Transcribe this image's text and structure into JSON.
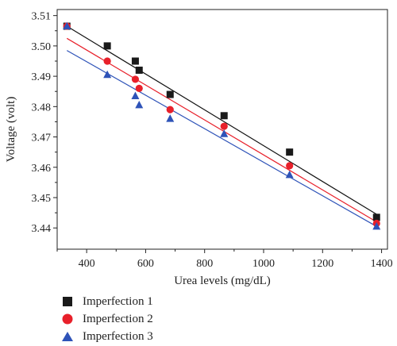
{
  "chart_data": {
    "type": "scatter",
    "xlabel": "Urea levels (mg/dL)",
    "ylabel": "Voltage (volt)",
    "xlim": [
      300,
      1420
    ],
    "ylim": [
      3.433,
      3.512
    ],
    "xticks": [
      400,
      600,
      800,
      1000,
      1200,
      1400
    ],
    "yticks": [
      3.44,
      3.45,
      3.46,
      3.47,
      3.48,
      3.49,
      3.5,
      3.51
    ],
    "xtick_labels": [
      "400",
      "600",
      "800",
      "1000",
      "1200",
      "1400"
    ],
    "ytick_labels": [
      "3.44",
      "3.45",
      "3.46",
      "3.47",
      "3.48",
      "3.49",
      "3.50",
      "3.51"
    ],
    "legend_position": "bottom-left",
    "grid": false,
    "series": [
      {
        "name": "Imperfection 1",
        "marker": "square",
        "color": "#1a1a1a",
        "fit_color": "#111111",
        "points": [
          [
            333,
            3.5065
          ],
          [
            470,
            3.5
          ],
          [
            565,
            3.495
          ],
          [
            578,
            3.492
          ],
          [
            683,
            3.484
          ],
          [
            866,
            3.477
          ],
          [
            1088,
            3.465
          ],
          [
            1383,
            3.4435
          ]
        ],
        "fit": [
          [
            333,
            3.5065
          ],
          [
            1383,
            3.4445
          ]
        ]
      },
      {
        "name": "Imperfection 2",
        "marker": "circle",
        "color": "#e8202a",
        "fit_color": "#e8202a",
        "points": [
          [
            333,
            3.5065
          ],
          [
            470,
            3.495
          ],
          [
            565,
            3.489
          ],
          [
            578,
            3.486
          ],
          [
            683,
            3.479
          ],
          [
            866,
            3.4735
          ],
          [
            1088,
            3.4605
          ],
          [
            1383,
            3.4415
          ]
        ],
        "fit": [
          [
            333,
            3.5025
          ],
          [
            1383,
            3.442
          ]
        ]
      },
      {
        "name": "Imperfection 3",
        "marker": "triangle",
        "color": "#2e53b8",
        "fit_color": "#2e53b8",
        "points": [
          [
            333,
            3.5065
          ],
          [
            470,
            3.4905
          ],
          [
            565,
            3.4835
          ],
          [
            578,
            3.4805
          ],
          [
            683,
            3.476
          ],
          [
            866,
            3.471
          ],
          [
            1088,
            3.4575
          ],
          [
            1383,
            3.4405
          ]
        ],
        "fit": [
          [
            333,
            3.4985
          ],
          [
            1383,
            3.4405
          ]
        ]
      }
    ]
  }
}
